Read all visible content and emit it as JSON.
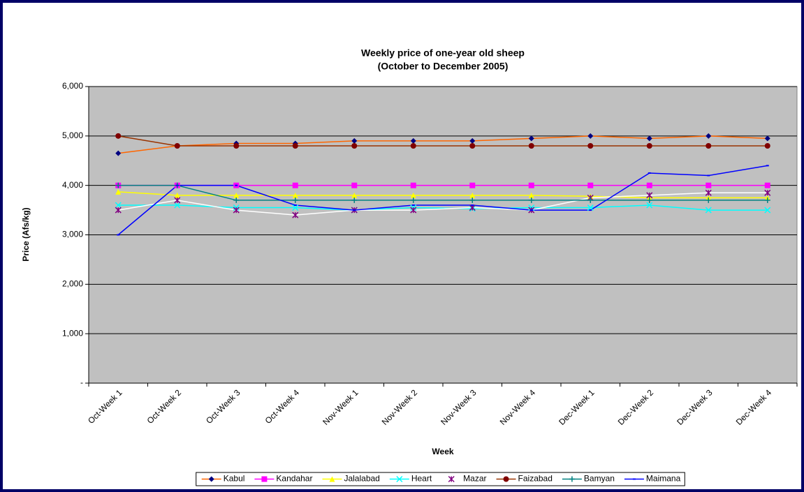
{
  "chart_data": {
    "type": "line",
    "title": "Weekly price of one-year old sheep",
    "subtitle": "(October to December 2005)",
    "x_label": "Week",
    "y_label": "Price (Afs/kg)",
    "categories": [
      "Oct-Week 1",
      "Oct-Week 2",
      "Oct-Week 3",
      "Oct-Week 4",
      "Nov-Week 1",
      "Nov-Week 2",
      "Nov-Week 3",
      "Nov-Week 4",
      "Dec-Week 1",
      "Dec-Week 2",
      "Dec-Week 3",
      "Dec-Week 4"
    ],
    "series": [
      {
        "name": "Kabul",
        "color": "#ff6600",
        "marker_color": "#000080",
        "marker": "diamond",
        "values": [
          4650,
          4800,
          4850,
          4850,
          4900,
          4900,
          4900,
          4950,
          5000,
          4950,
          5000,
          4950
        ]
      },
      {
        "name": "Kandahar",
        "color": "#ff00ff",
        "marker_color": "#ff00ff",
        "marker": "square",
        "values": [
          4000,
          4000,
          4000,
          4000,
          4000,
          4000,
          4000,
          4000,
          4000,
          4000,
          4000,
          4000
        ]
      },
      {
        "name": "Jalalabad",
        "color": "#ffff00",
        "marker_color": "#ffff00",
        "marker": "triangle",
        "values": [
          3870,
          3800,
          3800,
          3800,
          3800,
          3800,
          3800,
          3800,
          3780,
          3750,
          3750,
          3750
        ]
      },
      {
        "name": "Heart",
        "color": "#00ffff",
        "marker_color": "#00ffff",
        "marker": "x",
        "values": [
          3600,
          3600,
          3550,
          3550,
          3500,
          3550,
          3530,
          3550,
          3550,
          3600,
          3500,
          3500
        ]
      },
      {
        "name": "Mazar",
        "color": "#ffffff",
        "marker_color": "#800080",
        "marker": "star",
        "values": [
          3500,
          3700,
          3500,
          3400,
          3500,
          3500,
          3550,
          3500,
          3750,
          3800,
          3850,
          3850
        ]
      },
      {
        "name": "Faizabad",
        "color": "#993300",
        "marker_color": "#800000",
        "marker": "circle",
        "values": [
          5000,
          4800,
          4800,
          4800,
          4800,
          4800,
          4800,
          4800,
          4800,
          4800,
          4800,
          4800
        ]
      },
      {
        "name": "Bamyan",
        "color": "#008080",
        "marker_color": "#008080",
        "marker": "plus",
        "values": [
          4000,
          4000,
          3700,
          3700,
          3700,
          3700,
          3700,
          3700,
          3700,
          3700,
          3700,
          3700
        ]
      },
      {
        "name": "Maimana",
        "color": "#0000ff",
        "marker_color": "#0000ff",
        "marker": "dash",
        "values": [
          3000,
          4000,
          4000,
          3600,
          3500,
          3600,
          3600,
          3500,
          3500,
          4250,
          4200,
          4400
        ]
      }
    ],
    "ylim": [
      0,
      6000
    ],
    "yticks": [
      {
        "value": 0,
        "label": "-"
      },
      {
        "value": 1000,
        "label": "1,000"
      },
      {
        "value": 2000,
        "label": "2,000"
      },
      {
        "value": 3000,
        "label": "3,000"
      },
      {
        "value": 4000,
        "label": "4,000"
      },
      {
        "value": 5000,
        "label": "5,000"
      },
      {
        "value": 6000,
        "label": "6,000"
      }
    ],
    "grid": true,
    "legend": "bottom",
    "plot_background": "#c0c0c0"
  }
}
